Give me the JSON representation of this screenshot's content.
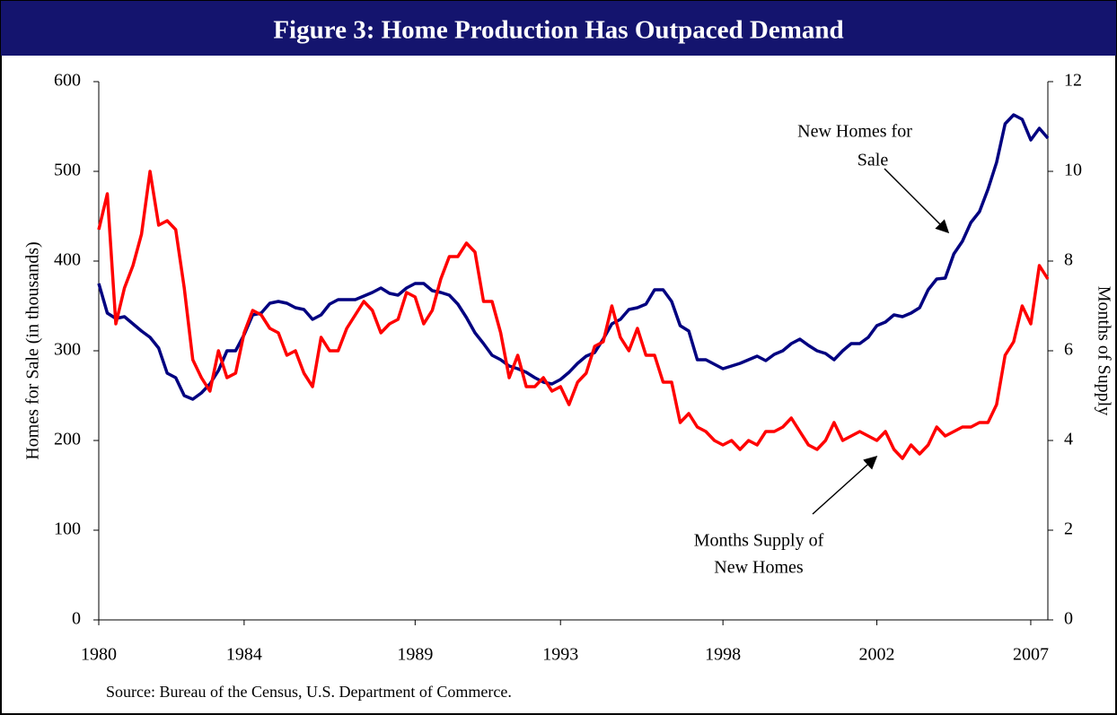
{
  "chart_data": {
    "type": "line",
    "title": "Figure 3: Home Production Has Outpaced Demand",
    "ylabel": "Homes for Sale (in thousands)",
    "y2label": "Months of Supply",
    "source": "Source: Bureau of the Census, U.S. Department of Commerce.",
    "ylim": [
      0,
      600
    ],
    "yticks": [
      0,
      100,
      200,
      300,
      400,
      500,
      600
    ],
    "y2lim": [
      0,
      12
    ],
    "y2ticks": [
      0,
      2,
      4,
      6,
      8,
      10,
      12
    ],
    "categories": [
      "1980",
      null,
      null,
      null,
      null,
      null,
      null,
      null,
      null,
      null,
      null,
      null,
      null,
      null,
      null,
      null,
      null,
      "1984",
      null,
      null,
      null,
      null,
      null,
      null,
      null,
      null,
      null,
      null,
      null,
      null,
      null,
      null,
      null,
      null,
      null,
      null,
      null,
      "1989",
      null,
      null,
      null,
      null,
      null,
      null,
      null,
      null,
      null,
      null,
      null,
      null,
      null,
      null,
      null,
      null,
      "1993",
      null,
      null,
      null,
      null,
      null,
      null,
      null,
      null,
      null,
      null,
      null,
      null,
      null,
      null,
      null,
      null,
      null,
      null,
      "1998",
      null,
      null,
      null,
      null,
      null,
      null,
      null,
      null,
      null,
      null,
      null,
      null,
      null,
      null,
      null,
      null,
      null,
      "2002",
      null,
      null,
      null,
      null,
      null,
      null,
      null,
      null,
      null,
      null,
      null,
      null,
      null,
      null,
      null,
      null,
      null,
      "2007",
      null,
      null
    ],
    "series": [
      {
        "color": "#000080",
        "axis": "y",
        "values": [
          375,
          342,
          336,
          338,
          330,
          322,
          315,
          303,
          275,
          270,
          250,
          246,
          253,
          263,
          278,
          300,
          300,
          318,
          340,
          342,
          353,
          355,
          353,
          348,
          346,
          335,
          340,
          352,
          357,
          357,
          357,
          361,
          365,
          370,
          364,
          362,
          370,
          375,
          375,
          367,
          365,
          362,
          352,
          337,
          320,
          308,
          295,
          290,
          283,
          280,
          276,
          270,
          265,
          263,
          268,
          276,
          286,
          294,
          298,
          313,
          330,
          335,
          346,
          348,
          352,
          368,
          368,
          355,
          328,
          322,
          290,
          290,
          285,
          280,
          283,
          286,
          290,
          294,
          289,
          296,
          300,
          308,
          313,
          306,
          300,
          297,
          290,
          300,
          308,
          308,
          315,
          328,
          332,
          340,
          338,
          342,
          348,
          368,
          380,
          381,
          408,
          422,
          443,
          455,
          480,
          510,
          553,
          563,
          558,
          535,
          548,
          537
        ]
      },
      {
        "color": "#ff0000",
        "axis": "y2",
        "values": [
          8.7,
          9.5,
          6.6,
          7.4,
          7.9,
          8.6,
          10.0,
          8.8,
          8.9,
          8.7,
          7.4,
          5.8,
          5.4,
          5.1,
          6.0,
          5.4,
          5.5,
          6.4,
          6.9,
          6.8,
          6.5,
          6.4,
          5.9,
          6.0,
          5.5,
          5.2,
          6.3,
          6.0,
          6.0,
          6.5,
          6.8,
          7.1,
          6.9,
          6.4,
          6.6,
          6.7,
          7.3,
          7.2,
          6.6,
          6.9,
          7.6,
          8.1,
          8.1,
          8.4,
          8.2,
          7.1,
          7.1,
          6.4,
          5.4,
          5.9,
          5.2,
          5.2,
          5.4,
          5.1,
          5.2,
          4.8,
          5.3,
          5.5,
          6.1,
          6.2,
          7.0,
          6.3,
          6.0,
          6.5,
          5.9,
          5.9,
          5.3,
          5.3,
          4.4,
          4.6,
          4.3,
          4.2,
          4.0,
          3.9,
          4.0,
          3.8,
          4.0,
          3.9,
          4.2,
          4.2,
          4.3,
          4.5,
          4.2,
          3.9,
          3.8,
          4.0,
          4.4,
          4.0,
          4.1,
          4.2,
          4.1,
          4.0,
          4.2,
          3.8,
          3.6,
          3.9,
          3.7,
          3.9,
          4.3,
          4.1,
          4.2,
          4.3,
          4.3,
          4.4,
          4.4,
          4.8,
          5.9,
          6.2,
          7.0,
          6.6,
          7.9,
          7.6
        ]
      }
    ],
    "annotations": [
      {
        "lines": [
          "New Homes for",
          "Sale"
        ]
      },
      {
        "lines": [
          "Months Supply of",
          "New Homes"
        ]
      }
    ]
  }
}
